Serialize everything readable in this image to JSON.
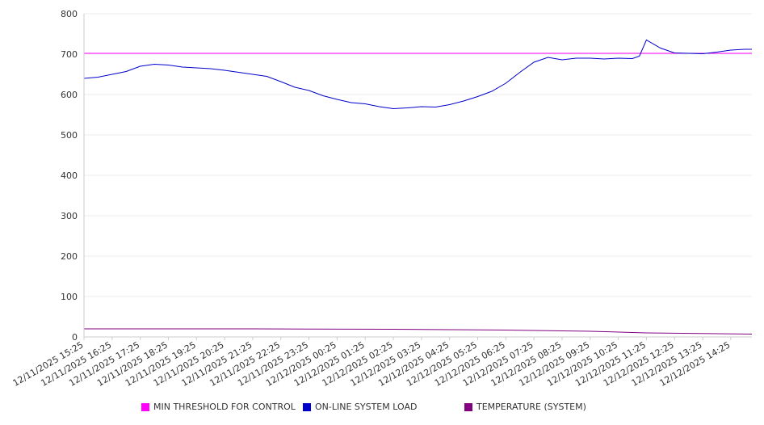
{
  "chart_data": {
    "type": "line",
    "ylim": [
      0,
      800
    ],
    "yticks": [
      0,
      100,
      200,
      300,
      400,
      500,
      600,
      700,
      800
    ],
    "grid": true,
    "legend_position": "bottom",
    "x_tick_labels": [
      "12/11/2025 15:25",
      "12/11/2025 16:25",
      "12/11/2025 17:25",
      "12/11/2025 18:25",
      "12/11/2025 19:25",
      "12/11/2025 20:25",
      "12/11/2025 21:25",
      "12/11/2025 22:25",
      "12/11/2025 23:25",
      "12/12/2025 00:25",
      "12/12/2025 01:25",
      "12/12/2025 02:25",
      "12/12/2025 03:25",
      "12/12/2025 04:25",
      "12/12/2025 05:25",
      "12/12/2025 06:25",
      "12/12/2025 07:25",
      "12/12/2025 08:25",
      "12/12/2025 09:25",
      "12/12/2025 10:25",
      "12/12/2025 11:25",
      "12/12/2025 12:25",
      "12/12/2025 13:25",
      "12/12/2025 14:25"
    ],
    "x_range": [
      "12/11/2025 15:25",
      "12/12/2025 15:10"
    ],
    "series": [
      {
        "name": "MIN THRESHOLD FOR CONTROL",
        "color": "#ff00ff",
        "x": [
          "12/11/2025 15:25",
          "12/12/2025 15:10"
        ],
        "values": [
          702,
          702
        ]
      },
      {
        "name": "ON-LINE SYSTEM LOAD",
        "color": "#0000cc",
        "x": [
          "12/11/2025 15:25",
          "12/11/2025 15:55",
          "12/11/2025 16:25",
          "12/11/2025 16:55",
          "12/11/2025 17:25",
          "12/11/2025 17:55",
          "12/11/2025 18:25",
          "12/11/2025 18:55",
          "12/11/2025 19:25",
          "12/11/2025 19:55",
          "12/11/2025 20:25",
          "12/11/2025 20:55",
          "12/11/2025 21:25",
          "12/11/2025 21:55",
          "12/11/2025 22:25",
          "12/11/2025 22:55",
          "12/11/2025 23:25",
          "12/11/2025 23:55",
          "12/12/2025 00:25",
          "12/12/2025 00:55",
          "12/12/2025 01:25",
          "12/12/2025 01:55",
          "12/12/2025 02:25",
          "12/12/2025 02:55",
          "12/12/2025 03:25",
          "12/12/2025 03:55",
          "12/12/2025 04:25",
          "12/12/2025 04:55",
          "12/12/2025 05:25",
          "12/12/2025 05:55",
          "12/12/2025 06:25",
          "12/12/2025 06:55",
          "12/12/2025 07:25",
          "12/12/2025 07:55",
          "12/12/2025 08:25",
          "12/12/2025 08:55",
          "12/12/2025 09:25",
          "12/12/2025 09:55",
          "12/12/2025 10:25",
          "12/12/2025 10:55",
          "12/12/2025 11:10",
          "12/12/2025 11:25",
          "12/12/2025 11:55",
          "12/12/2025 12:25",
          "12/12/2025 12:55",
          "12/12/2025 13:25",
          "12/12/2025 13:55",
          "12/12/2025 14:25",
          "12/12/2025 14:55",
          "12/12/2025 15:10"
        ],
        "values": [
          640,
          643,
          650,
          657,
          670,
          675,
          673,
          668,
          666,
          664,
          660,
          655,
          650,
          645,
          632,
          618,
          610,
          597,
          588,
          580,
          577,
          570,
          565,
          567,
          570,
          569,
          575,
          584,
          595,
          608,
          628,
          655,
          680,
          692,
          686,
          690,
          690,
          688,
          690,
          689,
          695,
          735,
          715,
          703,
          702,
          701,
          705,
          710,
          712,
          712
        ]
      },
      {
        "name": "TEMPERATURE (SYSTEM)",
        "color": "#800080",
        "x": [
          "12/11/2025 15:25",
          "12/11/2025 21:25",
          "12/12/2025 02:25",
          "12/12/2025 06:25",
          "12/12/2025 09:25",
          "12/12/2025 11:25",
          "12/12/2025 15:10"
        ],
        "values": [
          20,
          20,
          19,
          17,
          14,
          10,
          7
        ]
      }
    ]
  }
}
